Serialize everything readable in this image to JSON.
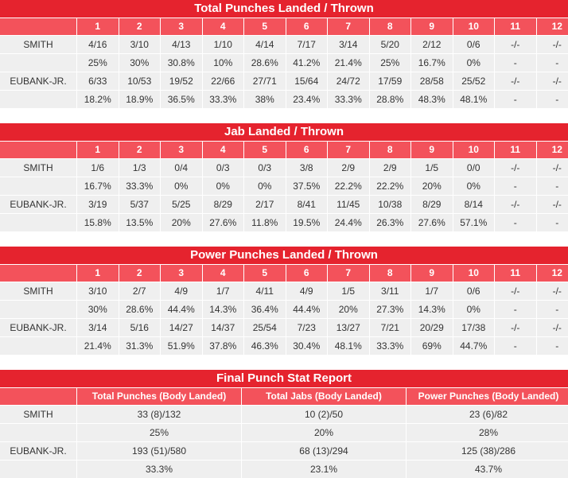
{
  "tables": [
    {
      "title": "Total Punches Landed / Thrown",
      "rounds": [
        "1",
        "2",
        "3",
        "4",
        "5",
        "6",
        "7",
        "8",
        "9",
        "10",
        "11",
        "12"
      ],
      "rows": [
        {
          "name": "SMITH",
          "values": [
            "4/16",
            "3/10",
            "4/13",
            "1/10",
            "4/14",
            "7/17",
            "3/14",
            "5/20",
            "2/12",
            "0/6",
            "-/-",
            "-/-"
          ]
        },
        {
          "name": "",
          "values": [
            "25%",
            "30%",
            "30.8%",
            "10%",
            "28.6%",
            "41.2%",
            "21.4%",
            "25%",
            "16.7%",
            "0%",
            "-",
            "-"
          ]
        },
        {
          "name": "EUBANK-JR.",
          "values": [
            "6/33",
            "10/53",
            "19/52",
            "22/66",
            "27/71",
            "15/64",
            "24/72",
            "17/59",
            "28/58",
            "25/52",
            "-/-",
            "-/-"
          ]
        },
        {
          "name": "",
          "values": [
            "18.2%",
            "18.9%",
            "36.5%",
            "33.3%",
            "38%",
            "23.4%",
            "33.3%",
            "28.8%",
            "48.3%",
            "48.1%",
            "-",
            "-"
          ]
        }
      ]
    },
    {
      "title": "Jab Landed / Thrown",
      "rounds": [
        "1",
        "2",
        "3",
        "4",
        "5",
        "6",
        "7",
        "8",
        "9",
        "10",
        "11",
        "12"
      ],
      "rows": [
        {
          "name": "SMITH",
          "values": [
            "1/6",
            "1/3",
            "0/4",
            "0/3",
            "0/3",
            "3/8",
            "2/9",
            "2/9",
            "1/5",
            "0/0",
            "-/-",
            "-/-"
          ]
        },
        {
          "name": "",
          "values": [
            "16.7%",
            "33.3%",
            "0%",
            "0%",
            "0%",
            "37.5%",
            "22.2%",
            "22.2%",
            "20%",
            "0%",
            "-",
            "-"
          ]
        },
        {
          "name": "EUBANK-JR.",
          "values": [
            "3/19",
            "5/37",
            "5/25",
            "8/29",
            "2/17",
            "8/41",
            "11/45",
            "10/38",
            "8/29",
            "8/14",
            "-/-",
            "-/-"
          ]
        },
        {
          "name": "",
          "values": [
            "15.8%",
            "13.5%",
            "20%",
            "27.6%",
            "11.8%",
            "19.5%",
            "24.4%",
            "26.3%",
            "27.6%",
            "57.1%",
            "-",
            "-"
          ]
        }
      ]
    },
    {
      "title": "Power Punches Landed / Thrown",
      "rounds": [
        "1",
        "2",
        "3",
        "4",
        "5",
        "6",
        "7",
        "8",
        "9",
        "10",
        "11",
        "12"
      ],
      "rows": [
        {
          "name": "SMITH",
          "values": [
            "3/10",
            "2/7",
            "4/9",
            "1/7",
            "4/11",
            "4/9",
            "1/5",
            "3/11",
            "1/7",
            "0/6",
            "-/-",
            "-/-"
          ]
        },
        {
          "name": "",
          "values": [
            "30%",
            "28.6%",
            "44.4%",
            "14.3%",
            "36.4%",
            "44.4%",
            "20%",
            "27.3%",
            "14.3%",
            "0%",
            "-",
            "-"
          ]
        },
        {
          "name": "EUBANK-JR.",
          "values": [
            "3/14",
            "5/16",
            "14/27",
            "14/37",
            "25/54",
            "7/23",
            "13/27",
            "7/21",
            "20/29",
            "17/38",
            "-/-",
            "-/-"
          ]
        },
        {
          "name": "",
          "values": [
            "21.4%",
            "31.3%",
            "51.9%",
            "37.8%",
            "46.3%",
            "30.4%",
            "48.1%",
            "33.3%",
            "69%",
            "44.7%",
            "-",
            "-"
          ]
        }
      ]
    }
  ],
  "final": {
    "title": "Final Punch Stat Report",
    "headers": [
      "Total Punches (Body Landed)",
      "Total Jabs (Body Landed)",
      "Power Punches (Body Landed)"
    ],
    "rows": [
      {
        "name": "SMITH",
        "values": [
          "33 (8)/132",
          "10 (2)/50",
          "23 (6)/82"
        ]
      },
      {
        "name": "",
        "values": [
          "25%",
          "20%",
          "28%"
        ]
      },
      {
        "name": "EUBANK-JR.",
        "values": [
          "193 (51)/580",
          "68 (13)/294",
          "125 (38)/286"
        ]
      },
      {
        "name": "",
        "values": [
          "33.3%",
          "23.1%",
          "43.7%"
        ]
      }
    ]
  },
  "colors": {
    "title_bg": "#e5232e",
    "header_bg": "#f3525b",
    "row_bg": "#efefef"
  }
}
